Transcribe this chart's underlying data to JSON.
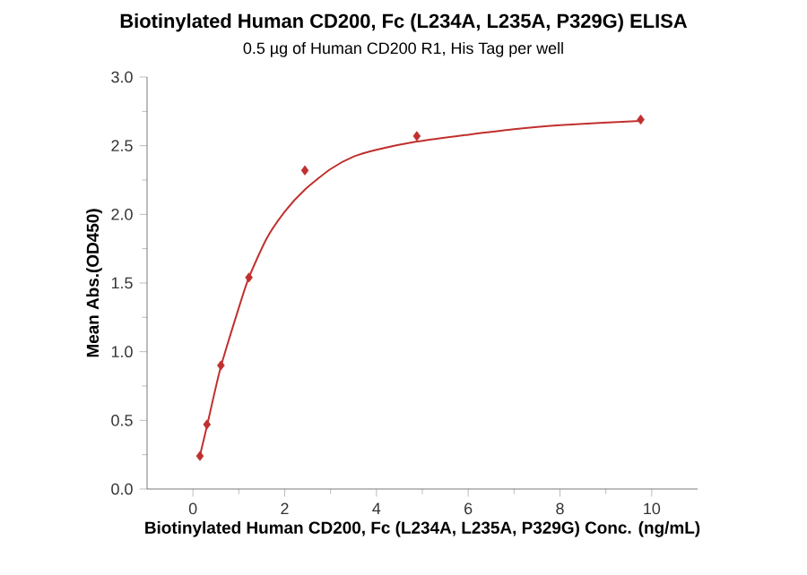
{
  "chart_data": {
    "type": "scatter",
    "title": "Biotinylated Human CD200, Fc (L234A, L235A, P329G) ELISA",
    "subtitle": "0.5 µg of Human CD200 R1, His Tag per well",
    "xlabel": "Biotinylated Human CD200, Fc (L234A, L235A, P329G) Conc. (ng/mL)",
    "ylabel": "Mean Abs.(OD450)",
    "xlim": [
      -1,
      11
    ],
    "xticks": [
      0,
      2,
      4,
      6,
      8,
      10
    ],
    "ylim": [
      0,
      3
    ],
    "yticks": [
      {
        "value": 0,
        "label": "0.0"
      },
      0.5,
      {
        "value": 1,
        "label": "1.0"
      },
      1.5,
      {
        "value": 2,
        "label": "2.0"
      },
      2.5,
      {
        "value": 3,
        "label": "3.0"
      }
    ],
    "grid": false,
    "series": [
      {
        "marker": "diamond",
        "color": "#c0302e",
        "x": [
          0.153,
          0.305,
          0.61,
          1.22,
          2.44,
          4.88,
          9.76
        ],
        "values": [
          0.24,
          0.47,
          0.9,
          1.54,
          2.32,
          2.57,
          2.69
        ]
      },
      {
        "type": "line",
        "marker": "none",
        "color": "#c0302e",
        "x": [
          0.15,
          0.3,
          0.6,
          1.0,
          1.22,
          1.6,
          2.0,
          2.44,
          3.0,
          3.5,
          4.0,
          4.88,
          6.0,
          7.0,
          8.0,
          9.76
        ],
        "values": [
          0.24,
          0.45,
          0.88,
          1.32,
          1.54,
          1.82,
          2.02,
          2.18,
          2.33,
          2.42,
          2.47,
          2.53,
          2.58,
          2.62,
          2.65,
          2.68
        ]
      }
    ]
  }
}
